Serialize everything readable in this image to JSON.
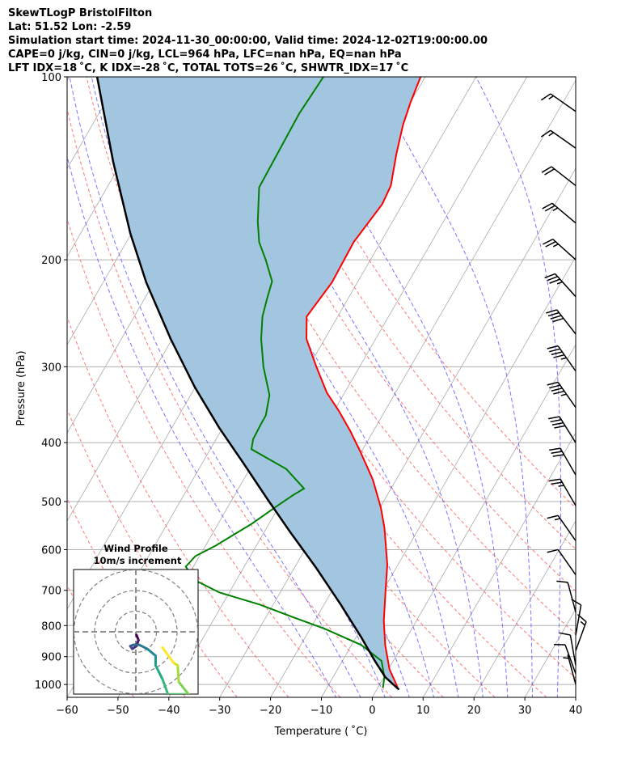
{
  "header": {
    "line1": "SkewTLogP BristolFilton",
    "line2": "Lat: 51.52   Lon: -2.59",
    "line3": "Simulation start time: 2024-11-30_00:00:00, Valid time: 2024-12-02T19:00:00.00",
    "line4": "CAPE=0 j/kg, CIN=0 j/kg, LCL=964 hPa, LFC=nan hPa, EQ=nan hPa",
    "line5": "LFT IDX=18 ˚C, K IDX=-28 ˚C, TOTAL TOTS=26 ˚C, SHWTR_IDX=17 ˚C"
  },
  "chart_data": {
    "type": "line",
    "title": "SkewTLogP BristolFilton",
    "xlabel": "Temperature ( ˚C)",
    "ylabel": "Pressure (hPa)",
    "xlim": [
      -60,
      40
    ],
    "ylim": [
      1050,
      100
    ],
    "x_ticks": [
      "−60",
      "−50",
      "−40",
      "−30",
      "−20",
      "−10",
      "0",
      "10",
      "20",
      "30",
      "40"
    ],
    "x_tick_values": [
      -60,
      -50,
      -40,
      -30,
      -20,
      -10,
      0,
      10,
      20,
      30,
      40
    ],
    "y_ticks": [
      "100",
      "200",
      "300",
      "400",
      "500",
      "600",
      "700",
      "800",
      "900",
      "1000"
    ],
    "y_tick_values": [
      100,
      200,
      300,
      400,
      500,
      600,
      700,
      800,
      900,
      1000
    ],
    "grid": true,
    "colors": {
      "temperature": "#ff0000",
      "dewpoint": "#008000",
      "parcel": "#000000",
      "shade": "#a2c6df",
      "dry_adiabat": "#ff5555",
      "moist_adiabat": "#5555ff",
      "isotherm": "#aaaaaa"
    },
    "series": [
      {
        "name": "Temperature",
        "points": [
          [
            1012,
            3.9
          ],
          [
            944,
            0.2
          ],
          [
            861,
            -3.4
          ],
          [
            786,
            -6.4
          ],
          [
            706,
            -9.3
          ],
          [
            635,
            -12.1
          ],
          [
            553,
            -16.8
          ],
          [
            512,
            -19.8
          ],
          [
            460,
            -24.6
          ],
          [
            414,
            -30.2
          ],
          [
            383,
            -34.5
          ],
          [
            355,
            -39
          ],
          [
            331,
            -43.5
          ],
          [
            300,
            -48.5
          ],
          [
            270,
            -53.6
          ],
          [
            248,
            -56.1
          ],
          [
            218,
            -55
          ],
          [
            187,
            -55.3
          ],
          [
            162,
            -54
          ],
          [
            151,
            -54.4
          ],
          [
            134,
            -56.9
          ],
          [
            120,
            -58.9
          ],
          [
            110,
            -60
          ],
          [
            100,
            -60.9
          ]
        ]
      },
      {
        "name": "Dewpoint",
        "points": [
          [
            1012,
            1.0
          ],
          [
            973,
            0.1
          ],
          [
            915,
            -2.3
          ],
          [
            861,
            -8.1
          ],
          [
            810,
            -17.1
          ],
          [
            774,
            -24.9
          ],
          [
            739,
            -32.6
          ],
          [
            706,
            -41.9
          ],
          [
            674,
            -48.1
          ],
          [
            640,
            -51.5
          ],
          [
            615,
            -50.8
          ],
          [
            591,
            -48
          ],
          [
            544,
            -43.4
          ],
          [
            505,
            -40.1
          ],
          [
            489,
            -38.6
          ],
          [
            476,
            -37.1
          ],
          [
            442,
            -42.8
          ],
          [
            410,
            -51.9
          ],
          [
            395,
            -52.7
          ],
          [
            372,
            -52.9
          ],
          [
            361,
            -52.9
          ],
          [
            334,
            -54.5
          ],
          [
            300,
            -58.9
          ],
          [
            270,
            -62.5
          ],
          [
            248,
            -64.8
          ],
          [
            232,
            -65.9
          ],
          [
            217,
            -66.9
          ],
          [
            200,
            -70.6
          ],
          [
            187,
            -73.9
          ],
          [
            173,
            -76.5
          ],
          [
            152,
            -80.1
          ],
          [
            115,
            -80.6
          ],
          [
            100,
            -80
          ]
        ]
      },
      {
        "name": "Parcel",
        "points": [
          [
            1020,
            4.4
          ],
          [
            973,
            0.3
          ],
          [
            915,
            -3.6
          ],
          [
            836,
            -9
          ],
          [
            739,
            -16.7
          ],
          [
            644,
            -25.6
          ],
          [
            562,
            -34.8
          ],
          [
            497,
            -42.9
          ],
          [
            433,
            -51.8
          ],
          [
            378,
            -60.7
          ],
          [
            324,
            -70.1
          ],
          [
            270,
            -80.3
          ],
          [
            218,
            -91.5
          ],
          [
            181,
            -100.2
          ],
          [
            138,
            -111.7
          ],
          [
            100,
            -124.5
          ]
        ]
      }
    ],
    "dry_adiabats_T1000": [
      -50,
      -40,
      -30,
      -20,
      -10,
      0,
      10,
      20,
      30,
      40,
      50,
      60,
      70,
      80
    ],
    "moist_adiabats_T1000": [
      -10,
      -5,
      0,
      5,
      10,
      15,
      20,
      25,
      30,
      35
    ],
    "wind_barbs": [
      {
        "p": 114,
        "dir": 305,
        "kt": 15
      },
      {
        "p": 131,
        "dir": 305,
        "kt": 15
      },
      {
        "p": 151,
        "dir": 308,
        "kt": 20
      },
      {
        "p": 174,
        "dir": 310,
        "kt": 25
      },
      {
        "p": 200,
        "dir": 312,
        "kt": 25
      },
      {
        "p": 230,
        "dir": 318,
        "kt": 35
      },
      {
        "p": 265,
        "dir": 322,
        "kt": 40
      },
      {
        "p": 305,
        "dir": 325,
        "kt": 45
      },
      {
        "p": 350,
        "dir": 325,
        "kt": 45
      },
      {
        "p": 400,
        "dir": 328,
        "kt": 40
      },
      {
        "p": 452,
        "dir": 330,
        "kt": 30
      },
      {
        "p": 508,
        "dir": 330,
        "kt": 25
      },
      {
        "p": 580,
        "dir": 325,
        "kt": 15
      },
      {
        "p": 660,
        "dir": 325,
        "kt": 10
      },
      {
        "p": 760,
        "dir": 345,
        "kt": 10
      },
      {
        "p": 830,
        "dir": 10,
        "kt": 10
      },
      {
        "p": 880,
        "dir": 20,
        "kt": 15
      },
      {
        "p": 930,
        "dir": 350,
        "kt": 10
      },
      {
        "p": 960,
        "dir": 340,
        "kt": 10
      },
      {
        "p": 1000,
        "dir": 345,
        "kt": 5
      }
    ],
    "hodograph": {
      "title": "Wind Profile",
      "subtitle": "10m/s increment",
      "rings_ms": [
        10,
        20,
        30
      ],
      "trace_uv": [
        [
          0.3,
          -1.5
        ],
        [
          1.3,
          -4
        ],
        [
          0.3,
          -6.9
        ],
        [
          -1.7,
          -8.3
        ],
        [
          -2.7,
          -6.9
        ],
        [
          -1.1,
          -6.3
        ],
        [
          1.6,
          -6.3
        ],
        [
          5.6,
          -8.3
        ],
        [
          9.6,
          -11.6
        ],
        [
          9.6,
          -16.3
        ],
        [
          12.9,
          -22.9
        ],
        [
          15.6,
          -30.3
        ],
        [
          25.6,
          -30.3
        ],
        [
          20.8,
          -24.3
        ],
        [
          20.3,
          -16.3
        ],
        [
          18.3,
          -15
        ],
        [
          12.9,
          -7.6
        ]
      ]
    }
  }
}
